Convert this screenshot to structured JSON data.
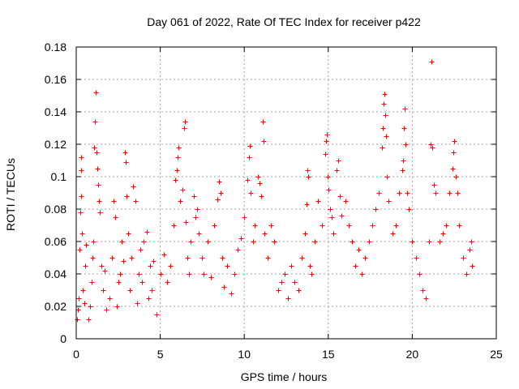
{
  "chart_data": {
    "type": "scatter",
    "title": "Day 061 of 2022, Rate Of TEC Index for receiver p422",
    "xlabel": "GPS time / hours",
    "ylabel": "ROTI / TECUs",
    "xlim": [
      0,
      25
    ],
    "ylim": [
      0,
      0.18
    ],
    "x_ticks": [
      0,
      5,
      10,
      15,
      20,
      25
    ],
    "y_ticks": [
      0,
      0.02,
      0.04,
      0.06,
      0.08,
      0.1,
      0.12,
      0.14,
      0.16,
      0.18
    ],
    "x_tick_labels": [
      "0",
      "5",
      "10",
      "15",
      "20",
      "25"
    ],
    "y_tick_labels": [
      "0",
      "0.02",
      "0.04",
      "0.06",
      "0.08",
      "0.1",
      "0.12",
      "0.14",
      "0.16",
      "0.18"
    ],
    "grid": true,
    "marker": "plus",
    "series_color": "#ff0000",
    "series": [
      {
        "values": [
          [
            0.05,
            0.012
          ],
          [
            0.1,
            0.018
          ],
          [
            0.15,
            0.025
          ],
          [
            0.2,
            0.055
          ],
          [
            0.25,
            0.078
          ],
          [
            0.3,
            0.088
          ],
          [
            0.3,
            0.104
          ],
          [
            0.3,
            0.112
          ],
          [
            0.35,
            0.065
          ],
          [
            0.4,
            0.03
          ],
          [
            0.5,
            0.022
          ],
          [
            0.55,
            0.045
          ],
          [
            0.6,
            0.058
          ],
          [
            0.7,
            0.012
          ],
          [
            0.8,
            0.02
          ],
          [
            0.9,
            0.035
          ],
          [
            0.95,
            0.05
          ],
          [
            1.0,
            0.06
          ],
          [
            1.05,
            0.118
          ],
          [
            1.1,
            0.134
          ],
          [
            1.15,
            0.152
          ],
          [
            1.2,
            0.115
          ],
          [
            1.25,
            0.105
          ],
          [
            1.3,
            0.095
          ],
          [
            1.35,
            0.085
          ],
          [
            1.4,
            0.078
          ],
          [
            1.5,
            0.045
          ],
          [
            1.6,
            0.03
          ],
          [
            1.7,
            0.042
          ],
          [
            1.8,
            0.018
          ],
          [
            2.0,
            0.025
          ],
          [
            2.1,
            0.05
          ],
          [
            2.2,
            0.085
          ],
          [
            2.3,
            0.075
          ],
          [
            2.4,
            0.02
          ],
          [
            2.5,
            0.035
          ],
          [
            2.6,
            0.04
          ],
          [
            2.7,
            0.06
          ],
          [
            2.8,
            0.048
          ],
          [
            2.9,
            0.115
          ],
          [
            2.95,
            0.109
          ],
          [
            3.0,
            0.088
          ],
          [
            3.1,
            0.065
          ],
          [
            3.2,
            0.03
          ],
          [
            3.3,
            0.05
          ],
          [
            3.4,
            0.094
          ],
          [
            3.5,
            0.085
          ],
          [
            3.6,
            0.022
          ],
          [
            3.7,
            0.04
          ],
          [
            3.8,
            0.055
          ],
          [
            3.9,
            0.035
          ],
          [
            4.0,
            0.06
          ],
          [
            4.2,
            0.066
          ],
          [
            4.3,
            0.025
          ],
          [
            4.4,
            0.045
          ],
          [
            4.5,
            0.03
          ],
          [
            4.6,
            0.048
          ],
          [
            4.8,
            0.015
          ],
          [
            5.0,
            0.04
          ],
          [
            5.2,
            0.052
          ],
          [
            5.4,
            0.035
          ],
          [
            5.6,
            0.045
          ],
          [
            5.8,
            0.07
          ],
          [
            5.9,
            0.098
          ],
          [
            6.0,
            0.104
          ],
          [
            6.05,
            0.112
          ],
          [
            6.1,
            0.118
          ],
          [
            6.2,
            0.085
          ],
          [
            6.3,
            0.092
          ],
          [
            6.4,
            0.13
          ],
          [
            6.45,
            0.134
          ],
          [
            6.5,
            0.072
          ],
          [
            6.6,
            0.05
          ],
          [
            6.7,
            0.04
          ],
          [
            6.8,
            0.06
          ],
          [
            7.0,
            0.088
          ],
          [
            7.1,
            0.075
          ],
          [
            7.2,
            0.08
          ],
          [
            7.3,
            0.065
          ],
          [
            7.5,
            0.05
          ],
          [
            7.6,
            0.04
          ],
          [
            7.8,
            0.06
          ],
          [
            8.0,
            0.038
          ],
          [
            8.2,
            0.07
          ],
          [
            8.4,
            0.086
          ],
          [
            8.5,
            0.097
          ],
          [
            8.6,
            0.09
          ],
          [
            8.7,
            0.05
          ],
          [
            8.8,
            0.032
          ],
          [
            9.0,
            0.045
          ],
          [
            9.2,
            0.028
          ],
          [
            9.4,
            0.04
          ],
          [
            9.6,
            0.055
          ],
          [
            9.8,
            0.062
          ],
          [
            10.0,
            0.075
          ],
          [
            10.2,
            0.098
          ],
          [
            10.3,
            0.112
          ],
          [
            10.35,
            0.119
          ],
          [
            10.4,
            0.09
          ],
          [
            10.5,
            0.06
          ],
          [
            10.6,
            0.07
          ],
          [
            10.8,
            0.1
          ],
          [
            10.9,
            0.096
          ],
          [
            11.0,
            0.088
          ],
          [
            11.1,
            0.134
          ],
          [
            11.15,
            0.122
          ],
          [
            11.2,
            0.065
          ],
          [
            11.4,
            0.05
          ],
          [
            11.6,
            0.07
          ],
          [
            11.8,
            0.06
          ],
          [
            12.0,
            0.03
          ],
          [
            12.2,
            0.035
          ],
          [
            12.4,
            0.04
          ],
          [
            12.6,
            0.025
          ],
          [
            12.8,
            0.045
          ],
          [
            13.0,
            0.035
          ],
          [
            13.2,
            0.03
          ],
          [
            13.4,
            0.05
          ],
          [
            13.6,
            0.065
          ],
          [
            13.7,
            0.083
          ],
          [
            13.75,
            0.104
          ],
          [
            13.8,
            0.1
          ],
          [
            13.9,
            0.045
          ],
          [
            14.0,
            0.04
          ],
          [
            14.2,
            0.06
          ],
          [
            14.4,
            0.085
          ],
          [
            14.6,
            0.07
          ],
          [
            14.8,
            0.114
          ],
          [
            14.85,
            0.122
          ],
          [
            14.9,
            0.126
          ],
          [
            14.95,
            0.1
          ],
          [
            15.0,
            0.092
          ],
          [
            15.1,
            0.08
          ],
          [
            15.2,
            0.075
          ],
          [
            15.3,
            0.065
          ],
          [
            15.5,
            0.104
          ],
          [
            15.6,
            0.11
          ],
          [
            15.7,
            0.088
          ],
          [
            15.8,
            0.076
          ],
          [
            16.0,
            0.085
          ],
          [
            16.2,
            0.07
          ],
          [
            16.4,
            0.06
          ],
          [
            16.6,
            0.045
          ],
          [
            16.8,
            0.055
          ],
          [
            17.0,
            0.04
          ],
          [
            17.2,
            0.05
          ],
          [
            17.4,
            0.06
          ],
          [
            17.6,
            0.07
          ],
          [
            17.8,
            0.08
          ],
          [
            18.0,
            0.09
          ],
          [
            18.2,
            0.118
          ],
          [
            18.25,
            0.13
          ],
          [
            18.3,
            0.145
          ],
          [
            18.35,
            0.151
          ],
          [
            18.4,
            0.138
          ],
          [
            18.45,
            0.125
          ],
          [
            18.5,
            0.1
          ],
          [
            18.6,
            0.085
          ],
          [
            18.8,
            0.065
          ],
          [
            19.0,
            0.07
          ],
          [
            19.2,
            0.09
          ],
          [
            19.4,
            0.104
          ],
          [
            19.45,
            0.11
          ],
          [
            19.5,
            0.13
          ],
          [
            19.55,
            0.142
          ],
          [
            19.6,
            0.12
          ],
          [
            19.7,
            0.09
          ],
          [
            19.8,
            0.08
          ],
          [
            20.0,
            0.06
          ],
          [
            20.2,
            0.05
          ],
          [
            20.4,
            0.04
          ],
          [
            20.6,
            0.03
          ],
          [
            20.8,
            0.025
          ],
          [
            21.0,
            0.06
          ],
          [
            21.1,
            0.12
          ],
          [
            21.15,
            0.171
          ],
          [
            21.2,
            0.118
          ],
          [
            21.3,
            0.095
          ],
          [
            21.4,
            0.09
          ],
          [
            21.6,
            0.06
          ],
          [
            21.8,
            0.065
          ],
          [
            22.0,
            0.07
          ],
          [
            22.2,
            0.09
          ],
          [
            22.4,
            0.105
          ],
          [
            22.45,
            0.115
          ],
          [
            22.5,
            0.122
          ],
          [
            22.6,
            0.1
          ],
          [
            22.7,
            0.09
          ],
          [
            22.8,
            0.07
          ],
          [
            23.0,
            0.05
          ],
          [
            23.2,
            0.04
          ],
          [
            23.4,
            0.055
          ],
          [
            23.5,
            0.06
          ],
          [
            23.55,
            0.045
          ]
        ]
      }
    ]
  }
}
